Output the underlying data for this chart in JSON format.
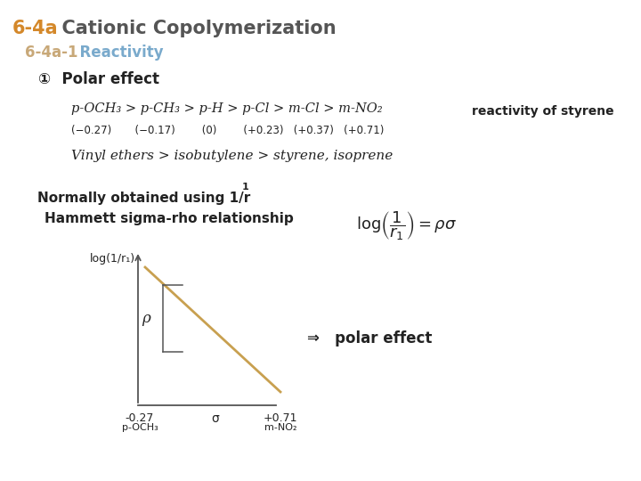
{
  "title_prefix": "6-4a",
  "title_text": "  Cationic Copolymerization",
  "subtitle_prefix": "6-4a-1",
  "subtitle_text": "  Reactivity",
  "circled_number": "①",
  "polar_effect": "  Polar effect",
  "reactivity_series": "p-OCH₃ > p-CH₃ > p-H > p-Cl > m-Cl > m-NO₂",
  "sigma_values": "(−0.27)       (−0.17)        (0)        (+0.23)   (+0.37)   (+0.71)",
  "reactivity_label": "reactivity of styrene",
  "vinyl_series": "Vinyl ethers > isobutylene > styrene, isoprene",
  "normally_text": "Normally obtained using 1/r",
  "hammett_text": "Hammett sigma-rho relationship",
  "graph_ylabel": "log(1/r₁)",
  "rho_label": "ρ",
  "arrow_label": "⇒   polar effect",
  "x_left_label": "-0.27",
  "x_left_sublabel": "p-OCH₃",
  "x_sigma_label": "σ",
  "x_right_label": "+0.71",
  "x_right_sublabel": "m-NO₂",
  "bg_color": "#ffffff",
  "title_dark_color": "#555555",
  "title_prefix_color": "#d4882a",
  "subtitle_prefix_color": "#c8a878",
  "subtitle_text_color": "#7aaacc",
  "line_color": "#c8a050",
  "axis_color": "#555555",
  "text_color": "#222222"
}
